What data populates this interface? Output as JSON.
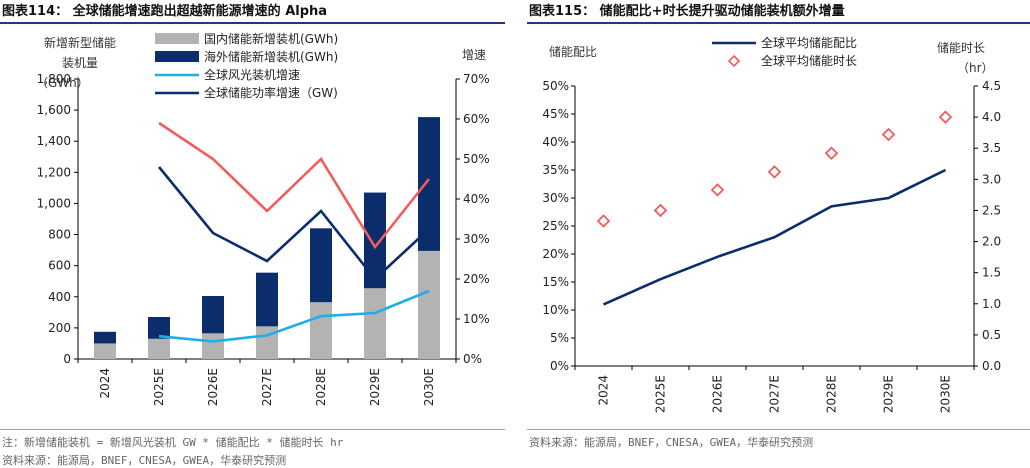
{
  "panel1": {
    "fig_label": "图表114：",
    "title": "全球储能增速跑出超越新能源增速的 Alpha",
    "left_axis_title": [
      "新增新型储能",
      "装机量",
      "（GWh）"
    ],
    "right_axis_title": "增速",
    "note": "注：新增储能装机 = 新增风光装机 GW * 储能配比 * 储能时长 hr",
    "source": "资料来源：能源局，BNEF，CNESA，GWEA，华泰研究预测"
  },
  "panel2": {
    "fig_label": "图表115：",
    "title": "储能配比+时长提升驱动储能装机额外增量",
    "left_axis_title": "储能配比",
    "right_axis_title": [
      "储能时长",
      "（hr）"
    ],
    "source": "资料来源：能源局，BNEF，CNESA，GWEA，华泰研究预测"
  },
  "chart_data": [
    {
      "type": "bar",
      "stacked": true,
      "categories": [
        "2024",
        "2025E",
        "2026E",
        "2027E",
        "2028E",
        "2029E",
        "2030E"
      ],
      "ylim": [
        0,
        1800
      ],
      "yticks": [
        0,
        200,
        400,
        600,
        800,
        1000,
        1200,
        1400,
        1600,
        1800
      ],
      "ylim_right": [
        0,
        0.7
      ],
      "yticks_right": [
        "0%",
        "10%",
        "20%",
        "30%",
        "40%",
        "50%",
        "60%",
        "70%"
      ],
      "series": [
        {
          "name": "国内储能新增装机(GWh)",
          "kind": "bar",
          "axis": "left",
          "color": "#b3b3b3",
          "values": [
            100,
            130,
            165,
            210,
            365,
            455,
            695
          ]
        },
        {
          "name": "海外储能新增装机(GWh)",
          "kind": "bar",
          "axis": "left",
          "color": "#0c2d6b",
          "values": [
            75,
            140,
            240,
            345,
            475,
            615,
            860
          ]
        },
        {
          "name": "全球风光装机增速",
          "kind": "line",
          "axis": "right",
          "color": "#1eaee8",
          "values": [
            null,
            0.057,
            0.044,
            0.059,
            0.107,
            0.115,
            0.17
          ]
        },
        {
          "name": "全球储能功率增速（GW)",
          "kind": "line",
          "axis": "right",
          "color": "#0c2d6b",
          "values": [
            null,
            0.48,
            0.315,
            0.245,
            0.37,
            0.2,
            0.325
          ]
        },
        {
          "kind": "line",
          "axis": "right",
          "color": "#f25b5b",
          "values": [
            null,
            0.59,
            0.5,
            0.37,
            0.5,
            0.28,
            0.45
          ]
        }
      ],
      "legend_position": "top-center"
    },
    {
      "type": "line",
      "categories": [
        "2024",
        "2025E",
        "2026E",
        "2027E",
        "2028E",
        "2029E",
        "2030E"
      ],
      "ylim": [
        0,
        0.5
      ],
      "yticks": [
        "0%",
        "5%",
        "10%",
        "15%",
        "20%",
        "25%",
        "30%",
        "35%",
        "40%",
        "45%",
        "50%"
      ],
      "ylim_right": [
        0,
        4.5
      ],
      "yticks_right": [
        "0.0",
        "0.5",
        "1.0",
        "1.5",
        "2.0",
        "2.5",
        "3.0",
        "3.5",
        "4.0",
        "4.5"
      ],
      "series": [
        {
          "name": "全球平均储能配比",
          "kind": "line",
          "axis": "left",
          "color": "#0c2d6b",
          "values": [
            0.11,
            0.155,
            0.195,
            0.23,
            0.285,
            0.3,
            0.35
          ]
        },
        {
          "name": "全球平均储能时长",
          "kind": "scatter",
          "axis": "right",
          "color": "#f25b5b",
          "values": [
            2.33,
            2.5,
            2.83,
            3.12,
            3.42,
            3.72,
            4.0
          ]
        }
      ],
      "legend_position": "top-center"
    }
  ]
}
